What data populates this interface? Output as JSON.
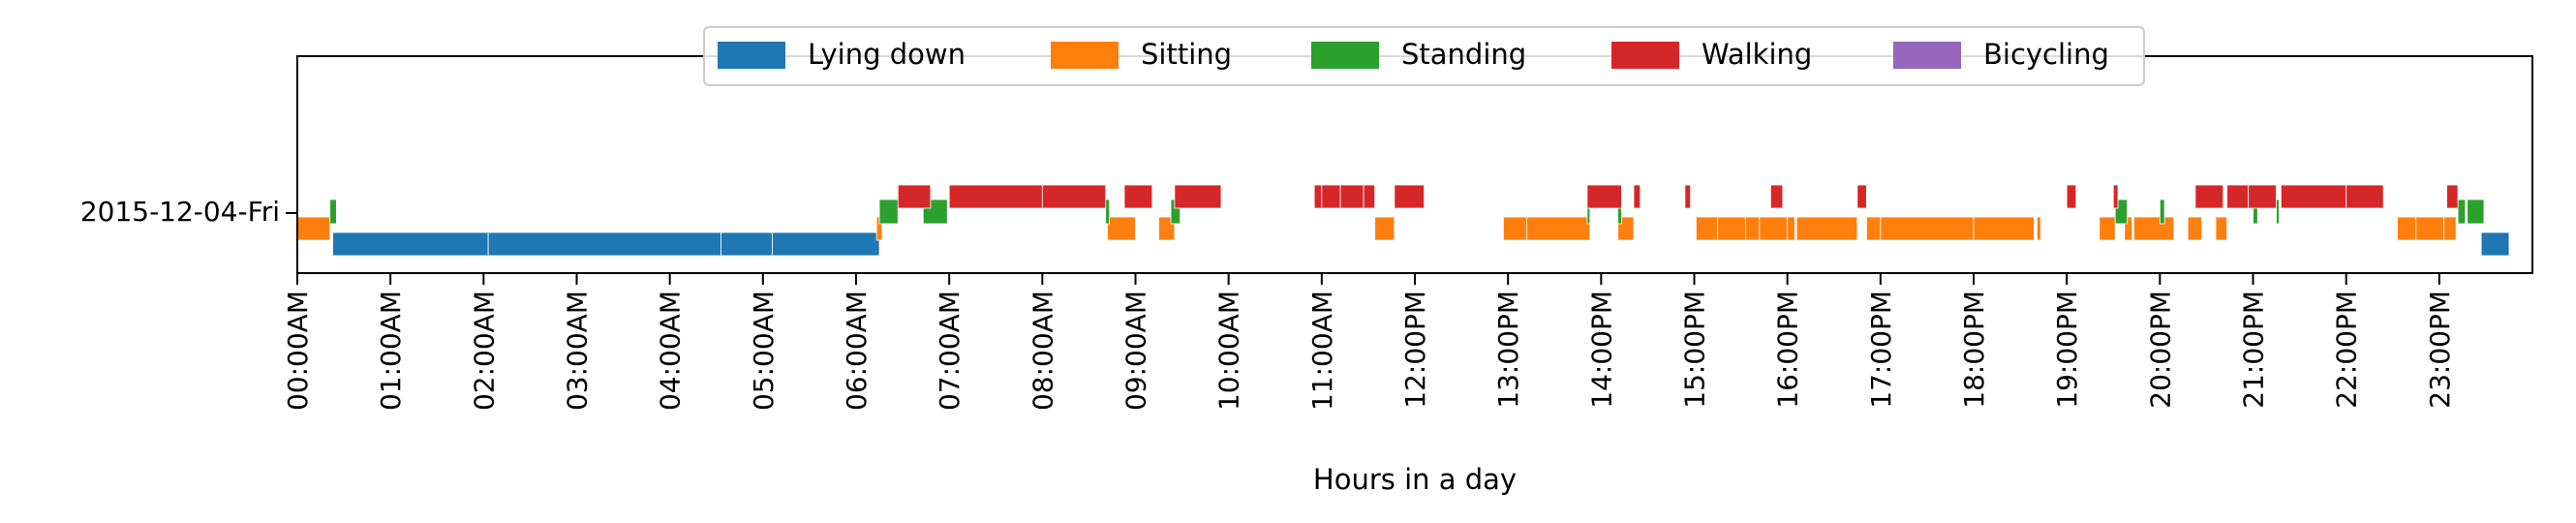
{
  "chart_data": {
    "type": "timeline",
    "title": "",
    "xlabel": "Hours in a day",
    "ylabel": "",
    "row_label": "2015-12-04-Fri",
    "xlim_hours": [
      0,
      24
    ],
    "x_tick_labels": [
      "00:00AM",
      "01:00AM",
      "02:00AM",
      "03:00AM",
      "04:00AM",
      "05:00AM",
      "06:00AM",
      "07:00AM",
      "08:00AM",
      "09:00AM",
      "10:00AM",
      "11:00AM",
      "12:00PM",
      "13:00PM",
      "14:00PM",
      "15:00PM",
      "16:00PM",
      "17:00PM",
      "18:00PM",
      "19:00PM",
      "20:00PM",
      "21:00PM",
      "22:00PM",
      "23:00PM"
    ],
    "legend_placement": "top-center",
    "grid": false,
    "series": [
      {
        "name": "Lying down",
        "color": "#1f77b4",
        "level": "low",
        "intervals": [
          [
            0.38,
            2.05
          ],
          [
            2.05,
            4.55
          ],
          [
            4.55,
            5.1
          ],
          [
            5.1,
            6.25
          ],
          [
            23.45,
            23.75
          ]
        ]
      },
      {
        "name": "Sitting",
        "color": "#ff7f0e",
        "level": "mid",
        "intervals": [
          [
            0.0,
            0.35
          ],
          [
            6.22,
            6.28
          ],
          [
            8.7,
            9.0
          ],
          [
            9.25,
            9.42
          ],
          [
            11.57,
            11.78
          ],
          [
            12.95,
            13.2
          ],
          [
            13.2,
            13.88
          ],
          [
            14.18,
            14.35
          ],
          [
            15.02,
            15.25
          ],
          [
            15.25,
            15.55
          ],
          [
            15.55,
            15.7
          ],
          [
            15.7,
            16.0
          ],
          [
            16.0,
            16.08
          ],
          [
            16.1,
            16.75
          ],
          [
            16.85,
            17.0
          ],
          [
            17.0,
            18.0
          ],
          [
            18.0,
            18.65
          ],
          [
            18.68,
            18.72
          ],
          [
            19.35,
            19.52
          ],
          [
            19.62,
            19.7
          ],
          [
            19.72,
            20.15
          ],
          [
            20.3,
            20.45
          ],
          [
            20.6,
            20.72
          ],
          [
            22.55,
            22.75
          ],
          [
            22.75,
            23.05
          ],
          [
            23.05,
            23.18
          ]
        ]
      },
      {
        "name": "Standing",
        "color": "#2ca02c",
        "level": "upper",
        "intervals": [
          [
            0.35,
            0.42
          ],
          [
            6.25,
            6.45
          ],
          [
            6.72,
            6.98
          ],
          [
            8.68,
            8.72
          ],
          [
            9.38,
            9.48
          ],
          [
            13.85,
            13.88
          ],
          [
            14.18,
            14.22
          ],
          [
            19.52,
            19.65
          ],
          [
            20.0,
            20.05
          ],
          [
            21.0,
            21.05
          ],
          [
            21.25,
            21.28
          ],
          [
            23.2,
            23.28
          ],
          [
            23.3,
            23.48
          ]
        ]
      },
      {
        "name": "Walking",
        "color": "#d62728",
        "level": "high",
        "intervals": [
          [
            6.45,
            6.8
          ],
          [
            7.0,
            8.0
          ],
          [
            8.0,
            8.68
          ],
          [
            8.88,
            9.18
          ],
          [
            9.42,
            9.92
          ],
          [
            10.92,
            11.0
          ],
          [
            11.0,
            11.2
          ],
          [
            11.2,
            11.45
          ],
          [
            11.45,
            11.57
          ],
          [
            11.78,
            12.1
          ],
          [
            13.85,
            14.22
          ],
          [
            14.35,
            14.42
          ],
          [
            14.9,
            14.96
          ],
          [
            15.82,
            15.95
          ],
          [
            16.75,
            16.85
          ],
          [
            19.0,
            19.1
          ],
          [
            19.5,
            19.55
          ],
          [
            20.38,
            20.68
          ],
          [
            20.72,
            20.95
          ],
          [
            20.95,
            21.25
          ],
          [
            21.3,
            22.0
          ],
          [
            22.0,
            22.4
          ],
          [
            23.08,
            23.2
          ]
        ]
      },
      {
        "name": "Bicycling",
        "color": "#9467bd",
        "level": "none",
        "intervals": []
      }
    ]
  }
}
